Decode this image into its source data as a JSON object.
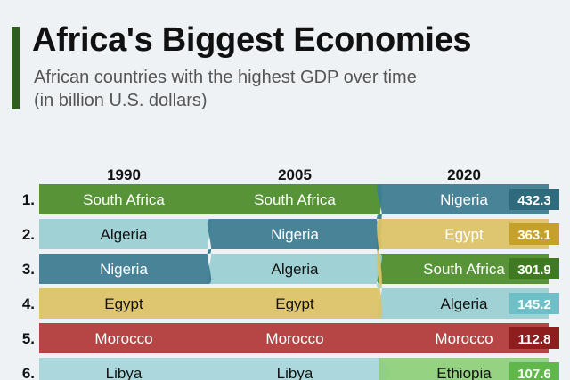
{
  "header": {
    "title": "Africa's Biggest Economies",
    "subtitle_line1": "African countries with the highest GDP over time",
    "subtitle_line2": "(in billion U.S. dollars)"
  },
  "chart_data": {
    "type": "bump",
    "title": "Africa's Biggest Economies",
    "subtitle": "African countries with the highest GDP over time (in billion U.S. dollars)",
    "years": [
      "1990",
      "2005",
      "2020"
    ],
    "ranks": [
      "1.",
      "2.",
      "3.",
      "4.",
      "5.",
      "6."
    ],
    "countries": [
      {
        "name": "South Africa",
        "color": "#4e8e2c",
        "ranks": [
          1,
          1,
          3
        ]
      },
      {
        "name": "Algeria",
        "color": "#9bd0d3",
        "ranks": [
          2,
          3,
          4
        ]
      },
      {
        "name": "Nigeria",
        "color": "#3e7c92",
        "ranks": [
          3,
          2,
          1
        ]
      },
      {
        "name": "Egypt",
        "color": "#dcc368",
        "ranks": [
          4,
          4,
          2
        ]
      },
      {
        "name": "Morocco",
        "color": "#b23b3b",
        "ranks": [
          5,
          5,
          5
        ]
      },
      {
        "name": "Libya",
        "color": "#a5d6da",
        "ranks": [
          6,
          6,
          null
        ]
      },
      {
        "name": "Ethiopia",
        "color": "#8fd07a",
        "ranks": [
          null,
          null,
          6
        ]
      }
    ],
    "values_2020": [
      {
        "country": "Nigeria",
        "value": 432.3,
        "color": "#2d6b7d"
      },
      {
        "country": "Egypt",
        "value": 363.1,
        "color": "#c5a12b"
      },
      {
        "country": "South Africa",
        "value": 301.9,
        "color": "#3f7a23"
      },
      {
        "country": "Algeria",
        "value": 145.2,
        "color": "#6fbfc8"
      },
      {
        "country": "Morocco",
        "value": 112.8,
        "color": "#8e1e1e"
      },
      {
        "country": "Ethiopia",
        "value": 107.6,
        "color": "#5fb849"
      }
    ]
  }
}
